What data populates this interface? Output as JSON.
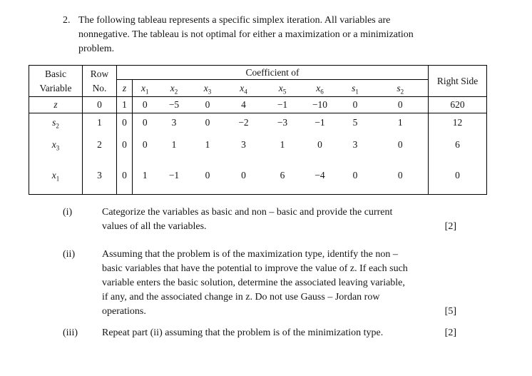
{
  "question": {
    "number": "2.",
    "lines": [
      "The following tableau represents a specific simplex iteration. All variables are",
      "nonnegative. The tableau is not optimal for either a maximization or a minimization",
      "problem."
    ]
  },
  "table": {
    "header": {
      "basic_variable": "Basic Variable",
      "row_no": "Row No.",
      "coefficient_of": "Coefficient of",
      "right_side": "Right Side",
      "variables": [
        "z",
        "x_1",
        "x_2",
        "x_3",
        "x_4",
        "x_5",
        "x_6",
        "s_1",
        "s_2"
      ]
    },
    "rows": [
      {
        "basic_variable": "z",
        "row_no": "0",
        "coefficients": [
          "1",
          "0",
          "−5",
          "0",
          "4",
          "−1",
          "−10",
          "0",
          "0"
        ],
        "right_side": "620"
      },
      {
        "basic_variable": "s_2",
        "row_no": "1",
        "coefficients": [
          "0",
          "0",
          "3",
          "0",
          "−2",
          "−3",
          "−1",
          "5",
          "1"
        ],
        "right_side": "12"
      },
      {
        "basic_variable": "x_3",
        "row_no": "2",
        "coefficients": [
          "0",
          "0",
          "1",
          "1",
          "3",
          "1",
          "0",
          "3",
          "0"
        ],
        "right_side": "6"
      },
      {
        "basic_variable": "x_1",
        "row_no": "3",
        "coefficients": [
          "0",
          "1",
          "−1",
          "0",
          "0",
          "6",
          "−4",
          "0",
          "0"
        ],
        "right_side": "0"
      }
    ]
  },
  "parts": [
    {
      "label": "(i)",
      "lines": [
        "Categorize the variables as basic and non – basic and provide the current",
        "values of all the variables."
      ],
      "marks": "[2]"
    },
    {
      "label": "(ii)",
      "lines": [
        "Assuming that the problem is of the maximization type, identify the non –",
        "basic variables that have the potential to improve the value of z. If each such",
        "variable enters the basic solution, determine the associated leaving variable,",
        "if any, and the associated change in z. Do not use Gauss – Jordan row",
        "operations."
      ],
      "marks": "[5]"
    },
    {
      "label": "(iii)",
      "lines": [
        "Repeat part (ii) assuming that the problem is of the minimization type."
      ],
      "marks": "[2]"
    }
  ]
}
